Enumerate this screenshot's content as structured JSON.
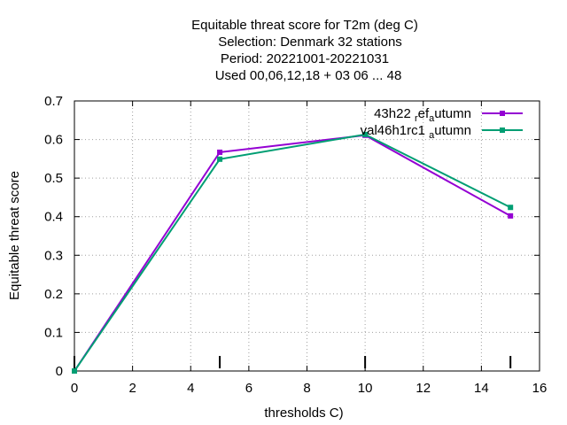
{
  "chart_data": {
    "type": "line",
    "title": [
      "Equitable threat score  for T2m (deg C)",
      "Selection: Denmark     32 stations",
      "Period: 20221001-20221031",
      "Used  00,06,12,18  + 03 06 ... 48"
    ],
    "xlabel": "thresholds C)",
    "ylabel": "Equitable threat score",
    "xlim": [
      0,
      16
    ],
    "ylim": [
      0,
      0.7
    ],
    "x_ticks": [
      "0",
      "2",
      "4",
      "6",
      "8",
      "10",
      "12",
      "14",
      "16"
    ],
    "y_ticks": [
      "0",
      "0.1",
      "0.2",
      "0.3",
      "0.4",
      "0.5",
      "0.6",
      "0.7"
    ],
    "threshold_marks": [
      0,
      5,
      10,
      15
    ],
    "grid": true,
    "legend_position": "top-right",
    "series": [
      {
        "name": "43h22 ref autumn",
        "label_parts": [
          "43h22 ",
          "r",
          "ef",
          "a",
          "utumn"
        ],
        "color": "#9400d3",
        "x": [
          0,
          5,
          10,
          15
        ],
        "y": [
          0,
          0.567,
          0.611,
          0.402
        ]
      },
      {
        "name": "val46h1rc1 autumn",
        "label_parts": [
          "val46h1rc1 ",
          "a",
          "utumn"
        ],
        "color": "#009e73",
        "x": [
          0,
          5,
          10,
          15
        ],
        "y": [
          0,
          0.549,
          0.613,
          0.424
        ]
      }
    ]
  }
}
